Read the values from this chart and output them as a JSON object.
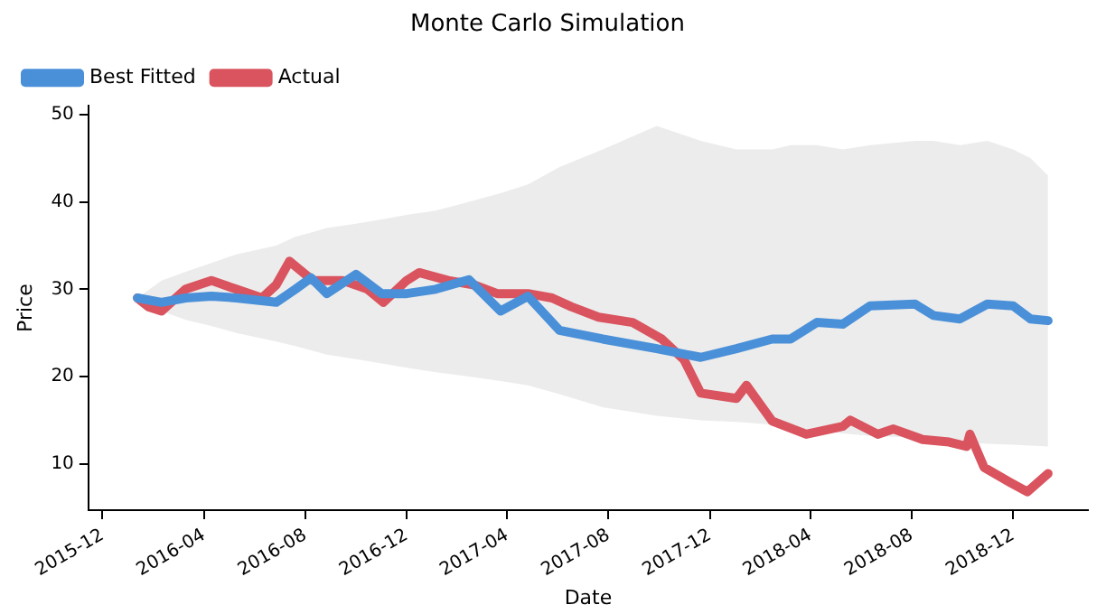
{
  "chart_data": {
    "type": "line",
    "title": "Monte Carlo Simulation",
    "xlabel": "Date",
    "ylabel": "Price",
    "xlim": [
      "2015-11-14",
      "2019-03-01"
    ],
    "xticks": [
      {
        "value": "2015-12-01",
        "label": "2015-12"
      },
      {
        "value": "2016-04-01",
        "label": "2016-04"
      },
      {
        "value": "2016-08-01",
        "label": "2016-08"
      },
      {
        "value": "2016-12-01",
        "label": "2016-12"
      },
      {
        "value": "2017-04-01",
        "label": "2017-04"
      },
      {
        "value": "2017-08-01",
        "label": "2017-08"
      },
      {
        "value": "2017-12-01",
        "label": "2017-12"
      },
      {
        "value": "2018-04-01",
        "label": "2018-04"
      },
      {
        "value": "2018-08-01",
        "label": "2018-08"
      },
      {
        "value": "2018-12-01",
        "label": "2018-12"
      }
    ],
    "ylim": [
      4.7,
      51
    ],
    "yticks": [
      10,
      20,
      30,
      40,
      50
    ],
    "grid": false,
    "legend": "top left",
    "marker": "none",
    "line_style": "solid",
    "series": [
      {
        "name": "Best Fitted",
        "color": "#4a90d9",
        "x": [
          "2016-01-12",
          "2016-02-10",
          "2016-03-10",
          "2016-04-10",
          "2016-05-10",
          "2016-06-27",
          "2016-07-20",
          "2016-08-08",
          "2016-08-27",
          "2016-10-01",
          "2016-11-01",
          "2016-12-01",
          "2017-01-05",
          "2017-02-14",
          "2017-03-24",
          "2017-04-26",
          "2017-06-03",
          "2017-07-25",
          "2017-09-28",
          "2017-11-20",
          "2018-01-02",
          "2018-02-14",
          "2018-03-08",
          "2018-04-09",
          "2018-05-10",
          "2018-06-12",
          "2018-08-05",
          "2018-08-27",
          "2018-09-28",
          "2018-10-31",
          "2018-12-01",
          "2018-12-22",
          "2019-01-12"
        ],
        "values": [
          29,
          28.5,
          29,
          29.2,
          29,
          28.5,
          30,
          31.3,
          29.5,
          31.7,
          29.5,
          29.5,
          30,
          31.1,
          27.5,
          29.2,
          25.3,
          24.3,
          23.2,
          22.2,
          23.2,
          24.3,
          24.3,
          26.2,
          26,
          28.1,
          28.3,
          27,
          26.6,
          28.3,
          28.1,
          26.6,
          26.4
        ],
        "lower": [
          29,
          27.5,
          26.5,
          25.8,
          25,
          24,
          23.5,
          23,
          22.5,
          22,
          21.5,
          21,
          20.5,
          20,
          19.5,
          19,
          18,
          16.5,
          15.5,
          15,
          14.8,
          14.5,
          14.2,
          13.8,
          13.5,
          13.2,
          13,
          12.8,
          12.5,
          12.3,
          12.2,
          12.1,
          12
        ],
        "upper": [
          29,
          31,
          32,
          33,
          34,
          35,
          36,
          36.5,
          37,
          37.5,
          38,
          38.5,
          39,
          40,
          41,
          42,
          44,
          46,
          48.7,
          47,
          46,
          46,
          46.5,
          46.5,
          46,
          46.5,
          47,
          47,
          46.5,
          47,
          46,
          45,
          43
        ]
      },
      {
        "name": "Actual",
        "color": "#d9545f",
        "x": [
          "2016-01-12",
          "2016-01-25",
          "2016-02-10",
          "2016-03-10",
          "2016-04-10",
          "2016-05-10",
          "2016-06-10",
          "2016-06-27",
          "2016-07-13",
          "2016-08-10",
          "2016-09-15",
          "2016-10-15",
          "2016-11-03",
          "2016-12-01",
          "2016-12-16",
          "2017-01-20",
          "2017-02-20",
          "2017-03-20",
          "2017-04-26",
          "2017-05-25",
          "2017-06-17",
          "2017-07-20",
          "2017-08-30",
          "2017-10-04",
          "2017-10-31",
          "2017-11-20",
          "2018-01-02",
          "2018-01-14",
          "2018-02-14",
          "2018-03-27",
          "2018-05-10",
          "2018-05-19",
          "2018-06-21",
          "2018-07-10",
          "2018-08-14",
          "2018-09-15",
          "2018-10-06",
          "2018-10-10",
          "2018-10-27",
          "2018-11-27",
          "2018-12-18",
          "2019-01-12"
        ],
        "values": [
          29,
          28,
          27.5,
          30,
          31,
          30,
          29,
          30.5,
          33.2,
          31,
          31,
          30,
          28.5,
          31,
          31.9,
          31,
          30.5,
          29.5,
          29.5,
          29,
          28,
          26.8,
          26.2,
          24.3,
          21.9,
          18.1,
          17.5,
          19,
          14.9,
          13.4,
          14.3,
          15,
          13.4,
          14,
          12.8,
          12.5,
          12,
          13.4,
          9.6,
          7.9,
          6.8,
          8.9
        ]
      }
    ]
  }
}
